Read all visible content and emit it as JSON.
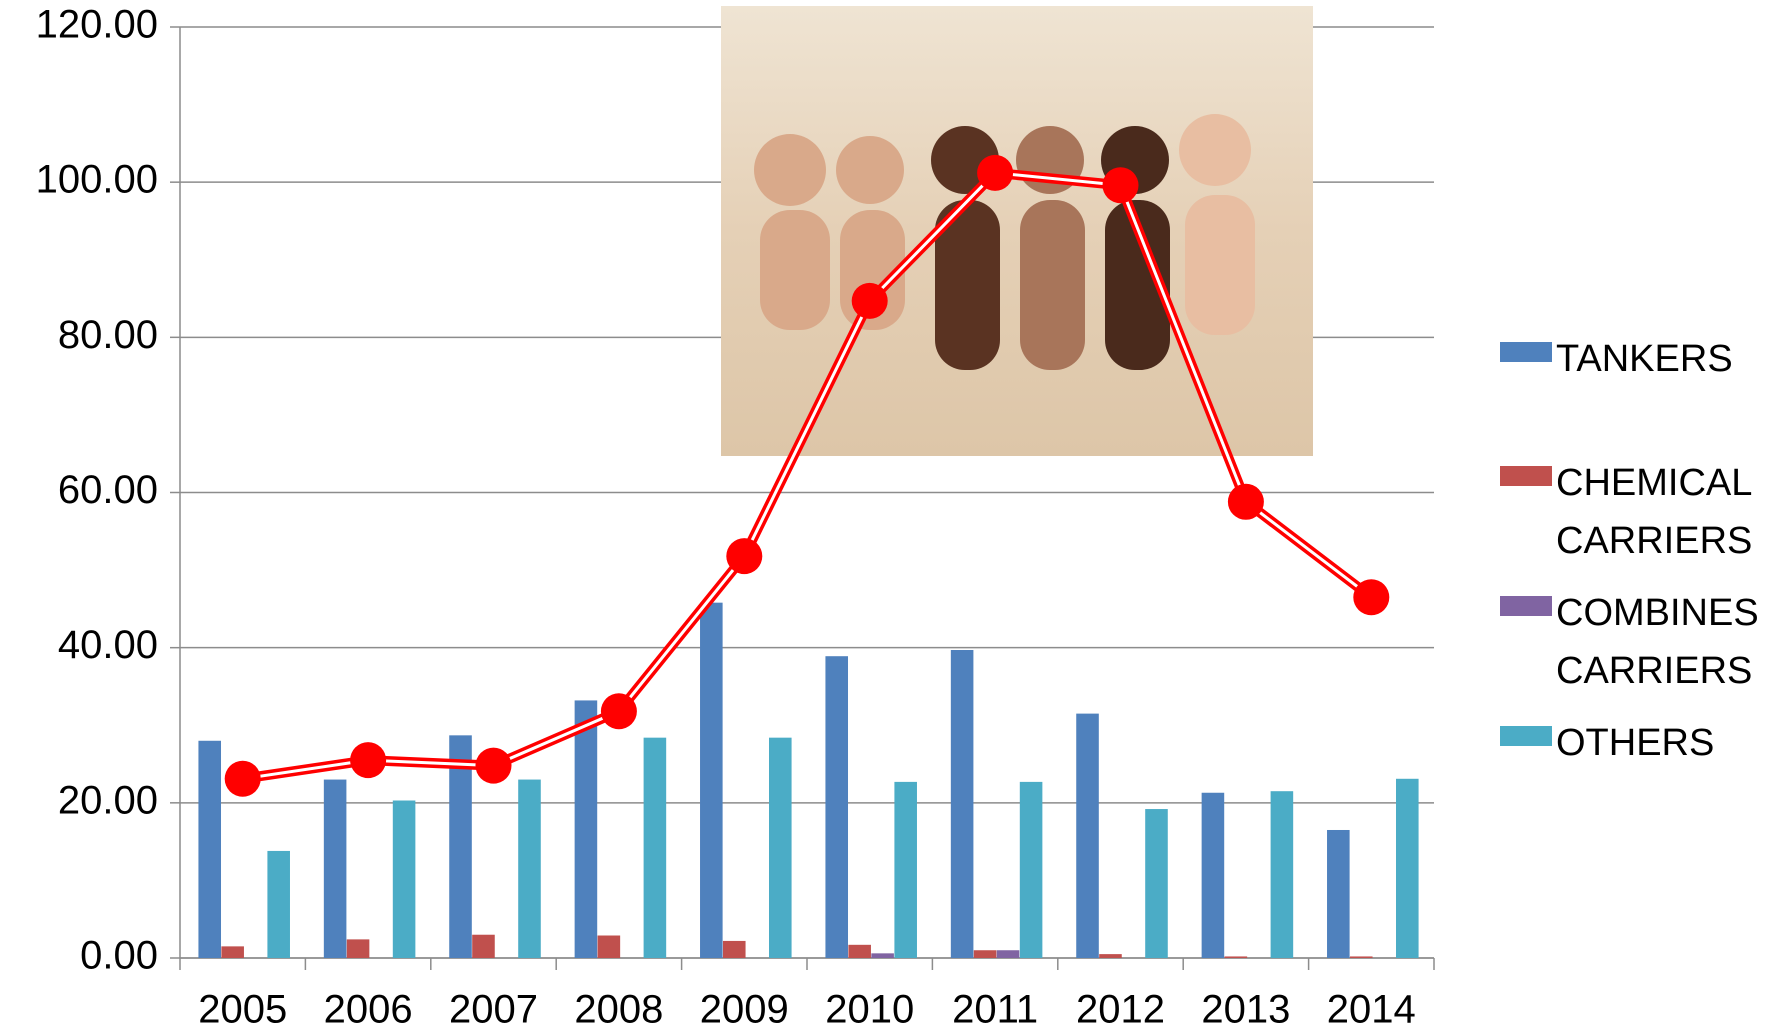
{
  "chart_data": {
    "type": "bar",
    "categories": [
      "2005",
      "2006",
      "2007",
      "2008",
      "2009",
      "2010",
      "2011",
      "2012",
      "2013",
      "2014"
    ],
    "series": [
      {
        "name": "TANKERS",
        "color": "#4f81bd",
        "values": [
          28.0,
          23.0,
          28.7,
          33.2,
          45.8,
          38.9,
          39.7,
          31.5,
          21.3,
          16.5
        ]
      },
      {
        "name": "CHEMICAL CARRIERS",
        "color": "#c0504d",
        "values": [
          1.5,
          2.4,
          3.0,
          2.9,
          2.2,
          1.7,
          1.0,
          0.5,
          0.2,
          0.2
        ]
      },
      {
        "name": "COMBINES CARRIERS",
        "color": "#8064a2",
        "values": [
          0,
          0,
          0,
          0,
          0,
          0.6,
          1.0,
          0,
          0,
          0
        ]
      },
      {
        "name": "OTHERS",
        "color": "#4bacc6",
        "values": [
          13.8,
          20.3,
          23.0,
          28.4,
          28.4,
          22.7,
          22.7,
          19.2,
          21.5,
          23.1
        ]
      },
      {
        "type": "line",
        "color": "#ff0000",
        "values": [
          23.1,
          25.5,
          24.8,
          31.8,
          51.8,
          84.7,
          101.2,
          99.6,
          58.8,
          46.5
        ]
      }
    ],
    "ylim": [
      0,
      120
    ],
    "yticks": [
      {
        "value": 0,
        "label": "0.00"
      },
      {
        "value": 20,
        "label": "20.00"
      },
      {
        "value": 40,
        "label": "40.00"
      },
      {
        "value": 60,
        "label": "60.00"
      },
      {
        "value": 80,
        "label": "80.00"
      },
      {
        "value": 100,
        "label": "100.00"
      },
      {
        "value": 120,
        "label": "120.00"
      }
    ],
    "grid": true,
    "legend": "right"
  }
}
